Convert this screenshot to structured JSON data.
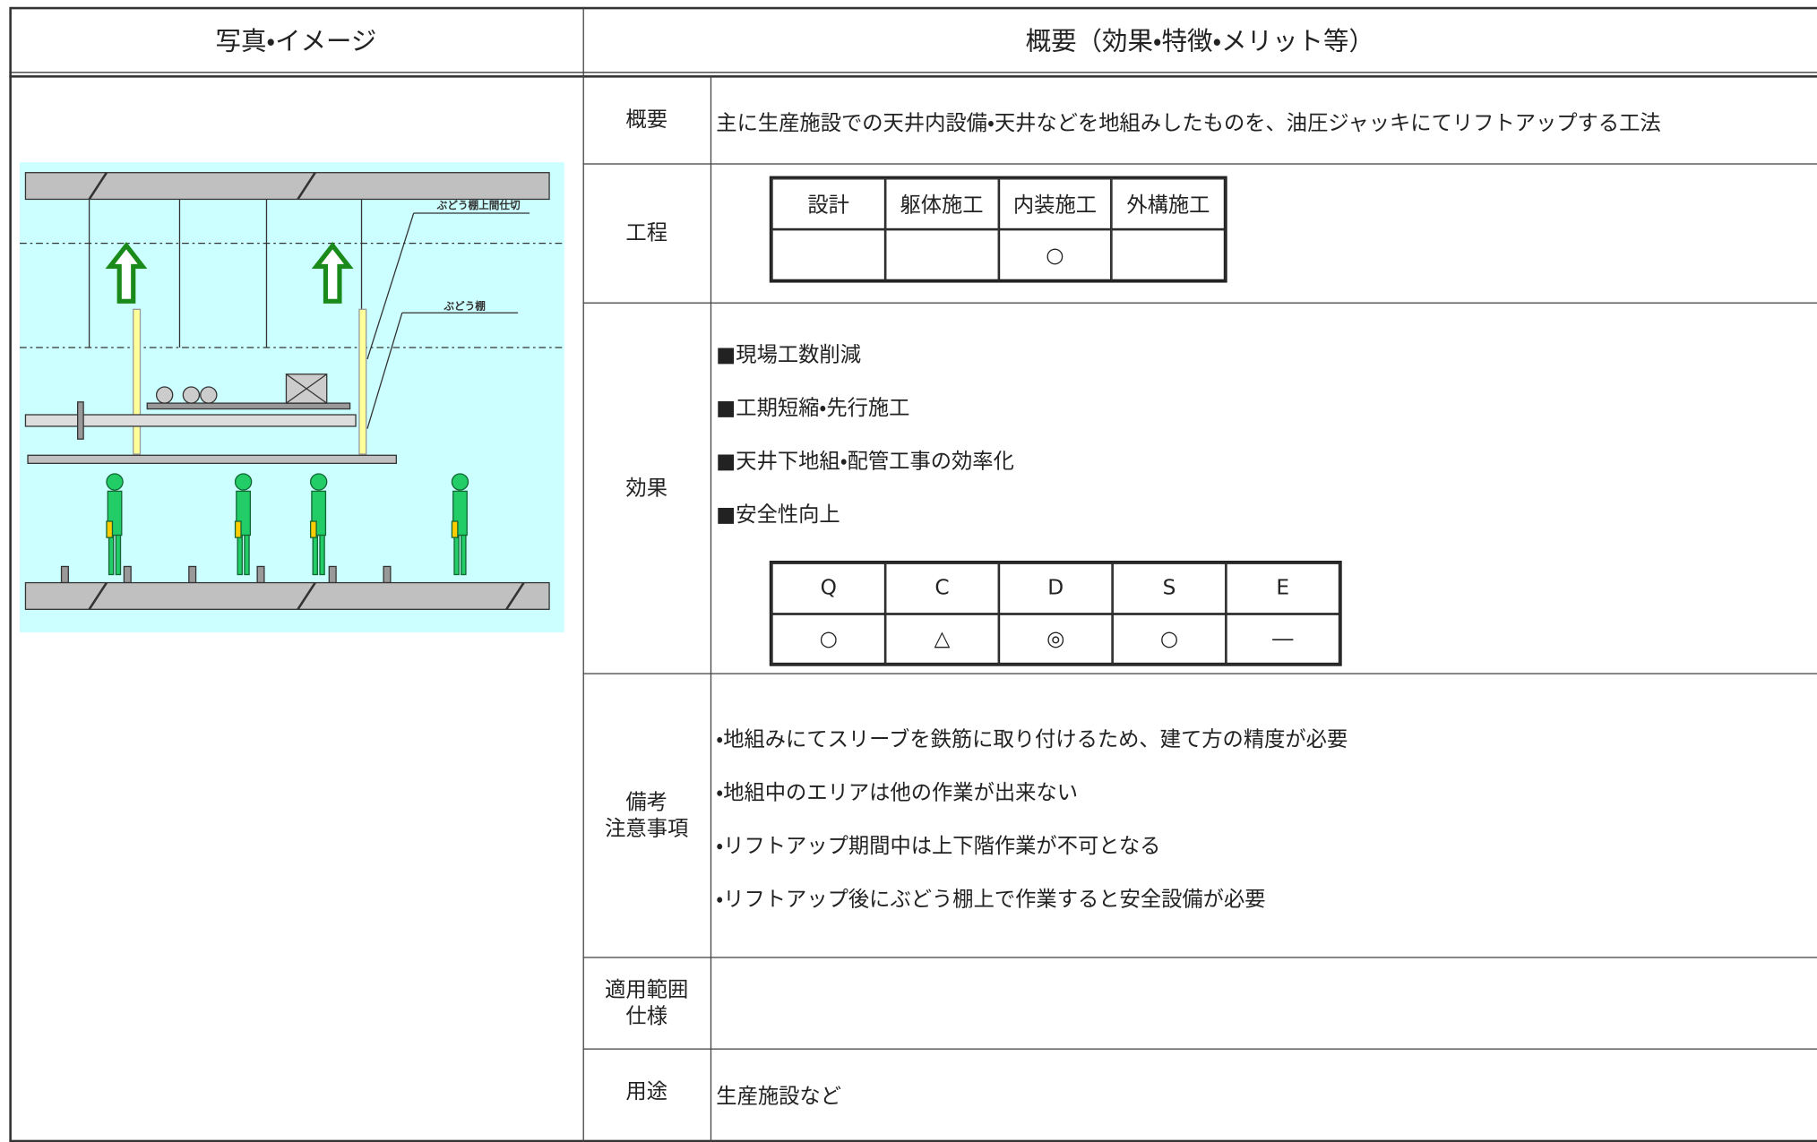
{
  "header": {
    "left": "写真・イメージ",
    "right": "概要（効果・特徴・メリット等）"
  },
  "image": {
    "labels": [
      "ぶどう棚上間仕切",
      "ぶどう棚"
    ]
  },
  "rows": {
    "overview": {
      "label": "概要",
      "text": "主に生産施設での天井内設備・天井などを地組みしたものを、油圧ジャッキにてリフトアップする工法"
    },
    "process": {
      "label": "工程",
      "headers": [
        "設計",
        "躯体施工",
        "内装施工",
        "外構施工"
      ],
      "marks": [
        null,
        null,
        "○",
        null
      ]
    },
    "effects": {
      "label": "効果",
      "items": [
        "■現場工数削減",
        "■工期短縮・先行施工",
        "■天井下地組・配管工事の効率化",
        "■安全性向上"
      ],
      "qcdse": {
        "headers": [
          "Q",
          "C",
          "D",
          "S",
          "E"
        ],
        "marks": [
          "○",
          "△",
          "◎",
          "○",
          "―"
        ]
      }
    },
    "notes": {
      "label": [
        "備考",
        "注意事項"
      ],
      "items": [
        "・地組みにてスリーブを鉄筋に取り付けるため、建て方の精度が必要",
        "・地組中のエリアは他の作業が出来ない",
        "・リフトアップ期間中は上下階作業が不可となる",
        "・リフトアップ後にぶどう棚上で作業すると安全設備が必要"
      ]
    },
    "scope": {
      "label": [
        "適用範囲",
        "仕様"
      ]
    },
    "usage": {
      "label": "用途",
      "text": "生産施設など"
    }
  }
}
